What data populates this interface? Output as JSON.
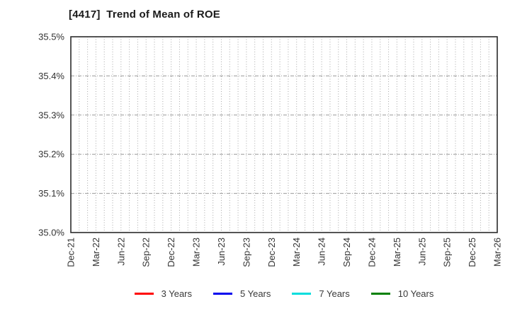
{
  "chart_data": {
    "type": "line",
    "title": "[4417]  Trend of Mean of ROE",
    "x_tick_labels": [
      "Dec-21",
      "Mar-22",
      "Jun-22",
      "Sep-22",
      "Dec-22",
      "Mar-23",
      "Jun-23",
      "Sep-23",
      "Dec-23",
      "Mar-24",
      "Jun-24",
      "Sep-24",
      "Dec-24",
      "Mar-25",
      "Jun-25",
      "Sep-25",
      "Dec-25",
      "Mar-26"
    ],
    "y_tick_labels": [
      "35.0%",
      "35.1%",
      "35.2%",
      "35.3%",
      "35.4%",
      "35.5%"
    ],
    "ylim": [
      35.0,
      35.5
    ],
    "y_tick_step": 0.1,
    "x_minor_gridlines_per_quarter": 3,
    "grid": "on",
    "legend_position": "bottom",
    "plot_border_color": "#2b2b2b",
    "vertical_grid_color": "#a8a8a8",
    "horizontal_grid_color": "#999999",
    "series": [
      {
        "name": "3 Years",
        "color": "#ff0000",
        "values": []
      },
      {
        "name": "5 Years",
        "color": "#0000ee",
        "values": []
      },
      {
        "name": "7 Years",
        "color": "#00dddd",
        "values": []
      },
      {
        "name": "10 Years",
        "color": "#008000",
        "values": []
      }
    ]
  }
}
